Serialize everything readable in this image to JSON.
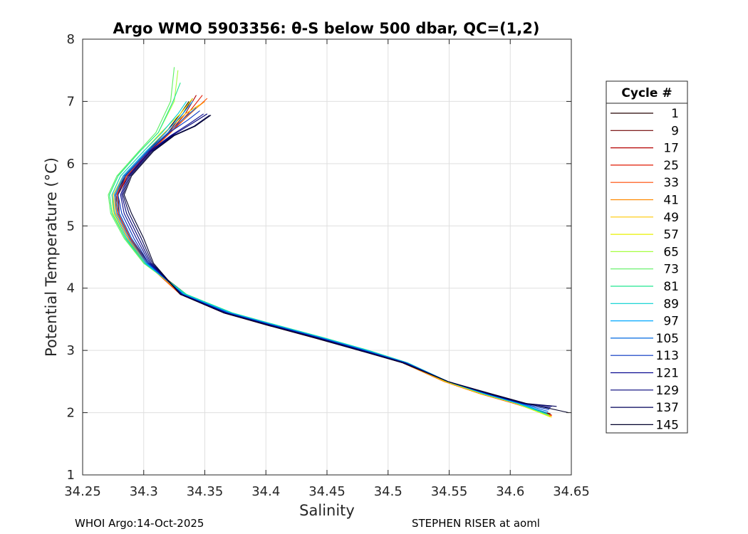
{
  "chart_data": {
    "type": "line",
    "title": "Argo WMO 5903356: θ-S below 500 dbar,  QC=(1,2)",
    "xlabel": "Salinity",
    "ylabel": "Potential Temperature (°C)",
    "xlim": [
      34.25,
      34.65
    ],
    "ylim": [
      1,
      8
    ],
    "x_ticks": [
      "34.25",
      "34.3",
      "34.35",
      "34.4",
      "34.45",
      "34.5",
      "34.55",
      "34.6",
      "34.65"
    ],
    "y_ticks": [
      "1",
      "2",
      "3",
      "4",
      "5",
      "6",
      "7",
      "8"
    ],
    "grid": true,
    "legend": {
      "title": "Cycle #",
      "placement": "right",
      "entries": [
        "1",
        "9",
        "17",
        "25",
        "33",
        "41",
        "49",
        "57",
        "65",
        "73",
        "81",
        "89",
        "97",
        "105",
        "113",
        "121",
        "129",
        "137",
        "145"
      ],
      "colors": [
        "#250000",
        "#6e0000",
        "#b40000",
        "#e01800",
        "#ff4a00",
        "#ff8a00",
        "#ffc800",
        "#e8f000",
        "#a6ff40",
        "#5cf060",
        "#20e890",
        "#00d0d0",
        "#00a8ff",
        "#0068e0",
        "#0030c0",
        "#0a0a90",
        "#000078",
        "#000058",
        "#00002a"
      ]
    },
    "series": [
      {
        "name": "1",
        "x": [
          34.337,
          34.33,
          34.318,
          34.303,
          34.285,
          34.277,
          34.278,
          34.288,
          34.302,
          34.335,
          34.372,
          34.408,
          34.445,
          34.482,
          34.515,
          34.548,
          34.578,
          34.605,
          34.633
        ],
        "y": [
          7.0,
          6.8,
          6.5,
          6.2,
          5.8,
          5.5,
          5.2,
          4.8,
          4.4,
          3.9,
          3.6,
          3.4,
          3.2,
          3.0,
          2.8,
          2.5,
          2.3,
          2.15,
          1.98
        ]
      },
      {
        "name": "9",
        "x": [
          34.34,
          34.332,
          34.32,
          34.305,
          34.287,
          34.279,
          34.28,
          34.29,
          34.304,
          34.333,
          34.37,
          34.406,
          34.443,
          34.48,
          34.513,
          34.547,
          34.577,
          34.604,
          34.632
        ],
        "y": [
          7.05,
          6.8,
          6.5,
          6.2,
          5.8,
          5.5,
          5.2,
          4.8,
          4.4,
          3.9,
          3.6,
          3.4,
          3.2,
          3.0,
          2.8,
          2.5,
          2.3,
          2.15,
          1.98
        ]
      },
      {
        "name": "17",
        "x": [
          34.343,
          34.334,
          34.321,
          34.305,
          34.286,
          34.278,
          34.279,
          34.289,
          34.303,
          34.332,
          34.368,
          34.404,
          34.441,
          34.478,
          34.512,
          34.546,
          34.576,
          34.603,
          34.634
        ],
        "y": [
          7.1,
          6.8,
          6.5,
          6.2,
          5.8,
          5.5,
          5.2,
          4.8,
          4.4,
          3.9,
          3.6,
          3.4,
          3.2,
          3.0,
          2.8,
          2.5,
          2.3,
          2.15,
          1.96
        ]
      },
      {
        "name": "25",
        "x": [
          34.348,
          34.336,
          34.322,
          34.306,
          34.287,
          34.278,
          34.279,
          34.289,
          34.302,
          34.33,
          34.366,
          34.403,
          34.44,
          34.477,
          34.512,
          34.546,
          34.576,
          34.603,
          34.634
        ],
        "y": [
          7.1,
          6.8,
          6.5,
          6.2,
          5.8,
          5.5,
          5.2,
          4.8,
          4.4,
          3.9,
          3.6,
          3.4,
          3.2,
          3.0,
          2.8,
          2.5,
          2.3,
          2.15,
          1.96
        ]
      },
      {
        "name": "33",
        "x": [
          34.352,
          34.338,
          34.322,
          34.306,
          34.286,
          34.277,
          34.278,
          34.288,
          34.302,
          34.33,
          34.366,
          34.402,
          34.44,
          34.477,
          34.512,
          34.546,
          34.576,
          34.603,
          34.634
        ],
        "y": [
          7.05,
          6.8,
          6.5,
          6.2,
          5.8,
          5.5,
          5.2,
          4.8,
          4.4,
          3.9,
          3.6,
          3.4,
          3.2,
          3.0,
          2.8,
          2.5,
          2.3,
          2.15,
          1.95
        ]
      },
      {
        "name": "41",
        "x": [
          34.35,
          34.337,
          34.32,
          34.304,
          34.284,
          34.276,
          34.277,
          34.287,
          34.302,
          34.331,
          34.367,
          34.403,
          34.441,
          34.478,
          34.512,
          34.546,
          34.576,
          34.604,
          34.633
        ],
        "y": [
          7.0,
          6.8,
          6.5,
          6.2,
          5.8,
          5.5,
          5.2,
          4.8,
          4.4,
          3.9,
          3.6,
          3.4,
          3.2,
          3.0,
          2.8,
          2.5,
          2.3,
          2.15,
          1.95
        ]
      },
      {
        "name": "49",
        "x": [
          34.346,
          34.334,
          34.317,
          34.302,
          34.283,
          34.275,
          34.276,
          34.286,
          34.302,
          34.332,
          34.368,
          34.405,
          34.443,
          34.479,
          34.513,
          34.547,
          34.577,
          34.604,
          34.634
        ],
        "y": [
          6.95,
          6.8,
          6.5,
          6.2,
          5.8,
          5.5,
          5.2,
          4.8,
          4.4,
          3.9,
          3.6,
          3.4,
          3.2,
          3.0,
          2.8,
          2.5,
          2.3,
          2.15,
          1.93
        ]
      },
      {
        "name": "57",
        "x": [
          34.34,
          34.33,
          34.314,
          34.3,
          34.281,
          34.274,
          34.275,
          34.285,
          34.301,
          34.333,
          34.37,
          34.407,
          34.445,
          34.481,
          34.514,
          34.548,
          34.578,
          34.605,
          34.633
        ],
        "y": [
          7.05,
          6.8,
          6.5,
          6.2,
          5.8,
          5.5,
          5.2,
          4.8,
          4.4,
          3.9,
          3.6,
          3.4,
          3.2,
          3.0,
          2.8,
          2.5,
          2.3,
          2.15,
          1.93
        ]
      },
      {
        "name": "65",
        "x": [
          34.328,
          34.325,
          34.312,
          34.297,
          34.279,
          34.272,
          34.274,
          34.285,
          34.3,
          34.334,
          34.372,
          34.409,
          34.447,
          34.483,
          34.515,
          34.548,
          34.578,
          34.605,
          34.632
        ],
        "y": [
          7.5,
          7.0,
          6.5,
          6.2,
          5.8,
          5.5,
          5.2,
          4.8,
          4.4,
          3.9,
          3.6,
          3.4,
          3.2,
          3.0,
          2.8,
          2.5,
          2.3,
          2.15,
          1.95
        ]
      },
      {
        "name": "73",
        "x": [
          34.325,
          34.322,
          34.31,
          34.296,
          34.278,
          34.271,
          34.273,
          34.284,
          34.3,
          34.335,
          34.373,
          34.41,
          34.448,
          34.484,
          34.516,
          34.549,
          34.579,
          34.606,
          34.632
        ],
        "y": [
          7.55,
          7.0,
          6.5,
          6.2,
          5.8,
          5.5,
          5.2,
          4.8,
          4.4,
          3.9,
          3.6,
          3.4,
          3.2,
          3.0,
          2.8,
          2.5,
          2.3,
          2.15,
          1.96
        ]
      },
      {
        "name": "81",
        "x": [
          34.33,
          34.324,
          34.312,
          34.297,
          34.279,
          34.272,
          34.274,
          34.285,
          34.301,
          34.335,
          34.373,
          34.41,
          34.448,
          34.484,
          34.516,
          34.549,
          34.579,
          34.606,
          34.631
        ],
        "y": [
          7.3,
          7.0,
          6.5,
          6.2,
          5.8,
          5.5,
          5.2,
          4.8,
          4.4,
          3.9,
          3.6,
          3.4,
          3.2,
          3.0,
          2.8,
          2.5,
          2.3,
          2.15,
          1.97
        ]
      },
      {
        "name": "89",
        "x": [
          34.335,
          34.328,
          34.315,
          34.3,
          34.281,
          34.274,
          34.276,
          34.286,
          34.301,
          34.334,
          34.372,
          34.409,
          34.447,
          34.483,
          34.516,
          34.549,
          34.579,
          34.606,
          34.63
        ],
        "y": [
          7.0,
          6.8,
          6.5,
          6.2,
          5.8,
          5.5,
          5.2,
          4.8,
          4.4,
          3.9,
          3.6,
          3.4,
          3.2,
          3.0,
          2.8,
          2.5,
          2.3,
          2.15,
          1.98
        ]
      },
      {
        "name": "97",
        "x": [
          34.34,
          34.332,
          34.318,
          34.302,
          34.283,
          34.276,
          34.278,
          34.288,
          34.302,
          34.333,
          34.371,
          34.408,
          34.446,
          34.482,
          34.515,
          34.549,
          34.58,
          34.607,
          34.63
        ],
        "y": [
          7.0,
          6.8,
          6.5,
          6.2,
          5.8,
          5.5,
          5.2,
          4.8,
          4.4,
          3.9,
          3.6,
          3.4,
          3.2,
          3.0,
          2.8,
          2.5,
          2.3,
          2.15,
          2.0
        ]
      },
      {
        "name": "105",
        "x": [
          34.343,
          34.334,
          34.32,
          34.303,
          34.284,
          34.277,
          34.28,
          34.29,
          34.303,
          34.332,
          34.37,
          34.407,
          34.445,
          34.481,
          34.515,
          34.549,
          34.581,
          34.608,
          34.631
        ],
        "y": [
          6.9,
          6.75,
          6.5,
          6.2,
          5.8,
          5.5,
          5.2,
          4.8,
          4.4,
          3.9,
          3.6,
          3.4,
          3.2,
          3.0,
          2.8,
          2.5,
          2.3,
          2.15,
          2.02
        ]
      },
      {
        "name": "113",
        "x": [
          34.346,
          34.336,
          34.321,
          34.304,
          34.285,
          34.279,
          34.282,
          34.292,
          34.304,
          34.332,
          34.369,
          34.406,
          34.444,
          34.48,
          34.514,
          34.549,
          34.582,
          34.609,
          34.632
        ],
        "y": [
          6.85,
          6.7,
          6.5,
          6.2,
          5.8,
          5.5,
          5.2,
          4.8,
          4.4,
          3.9,
          3.6,
          3.4,
          3.2,
          3.0,
          2.8,
          2.5,
          2.3,
          2.15,
          2.05
        ]
      },
      {
        "name": "121",
        "x": [
          34.349,
          34.338,
          34.322,
          34.305,
          34.287,
          34.281,
          34.284,
          34.294,
          34.305,
          34.331,
          34.368,
          34.405,
          34.443,
          34.479,
          34.514,
          34.549,
          34.582,
          34.61,
          34.633
        ],
        "y": [
          6.8,
          6.65,
          6.45,
          6.2,
          5.8,
          5.5,
          5.2,
          4.8,
          4.4,
          3.9,
          3.6,
          3.4,
          3.2,
          3.0,
          2.8,
          2.5,
          2.3,
          2.15,
          2.08
        ]
      },
      {
        "name": "129",
        "x": [
          34.352,
          34.34,
          34.323,
          34.306,
          34.288,
          34.282,
          34.286,
          34.296,
          34.306,
          34.331,
          34.367,
          34.404,
          34.442,
          34.478,
          34.513,
          34.549,
          34.583,
          34.611,
          34.634
        ],
        "y": [
          6.8,
          6.65,
          6.45,
          6.2,
          5.8,
          5.5,
          5.2,
          4.8,
          4.4,
          3.9,
          3.6,
          3.4,
          3.2,
          3.0,
          2.8,
          2.5,
          2.3,
          2.15,
          2.1
        ]
      },
      {
        "name": "137",
        "x": [
          34.354,
          34.341,
          34.324,
          34.307,
          34.289,
          34.283,
          34.288,
          34.298,
          34.307,
          34.33,
          34.366,
          34.403,
          34.441,
          34.477,
          34.512,
          34.549,
          34.584,
          34.612,
          34.638
        ],
        "y": [
          6.78,
          6.6,
          6.45,
          6.2,
          5.8,
          5.5,
          5.2,
          4.8,
          4.4,
          3.9,
          3.6,
          3.4,
          3.2,
          3.0,
          2.8,
          2.5,
          2.3,
          2.15,
          2.1
        ]
      },
      {
        "name": "145",
        "x": [
          34.355,
          34.342,
          34.325,
          34.308,
          34.29,
          34.284,
          34.29,
          34.3,
          34.308,
          34.33,
          34.366,
          34.402,
          34.44,
          34.476,
          34.512,
          34.549,
          34.585,
          34.613,
          34.648
        ],
        "y": [
          6.78,
          6.6,
          6.45,
          6.2,
          5.8,
          5.5,
          5.2,
          4.8,
          4.4,
          3.9,
          3.6,
          3.4,
          3.2,
          3.0,
          2.8,
          2.5,
          2.3,
          2.15,
          2.0
        ]
      }
    ]
  },
  "footer": {
    "left": "WHOI Argo:14-Oct-2025",
    "right": "STEPHEN RISER at aoml"
  }
}
